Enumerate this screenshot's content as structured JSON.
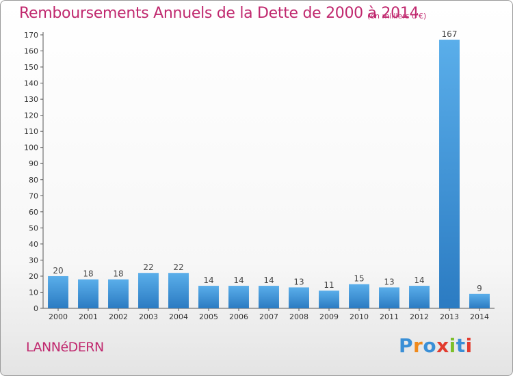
{
  "chart_data": {
    "type": "bar",
    "title": "Remboursements Annuels de la Dette de 2000 à 2014",
    "subtitle": "(en milliers d'€)",
    "xlabel": "",
    "ylabel": "",
    "categories": [
      "2000",
      "2001",
      "2002",
      "2003",
      "2004",
      "2005",
      "2006",
      "2007",
      "2008",
      "2009",
      "2010",
      "2011",
      "2012",
      "2013",
      "2014"
    ],
    "values": [
      20,
      18,
      18,
      22,
      22,
      14,
      14,
      14,
      13,
      11,
      15,
      13,
      14,
      167,
      9
    ],
    "ylim": [
      0,
      170
    ],
    "yticks": [
      0,
      10,
      20,
      30,
      40,
      50,
      60,
      70,
      80,
      90,
      100,
      110,
      120,
      130,
      140,
      150,
      160,
      170
    ],
    "grid": false,
    "bar_color": "#4f9ddf",
    "bar_color_dark": "#2b7bc2"
  },
  "commune": "LANNéDERN",
  "logo": {
    "letters": [
      "P",
      "r",
      "o",
      "x",
      "i",
      "t",
      "i"
    ],
    "colors": [
      "#3a8fd6",
      "#f08a1c",
      "#3a8fd6",
      "#e23b2e",
      "#7cbf2a",
      "#3a8fd6",
      "#e23b2e"
    ]
  }
}
